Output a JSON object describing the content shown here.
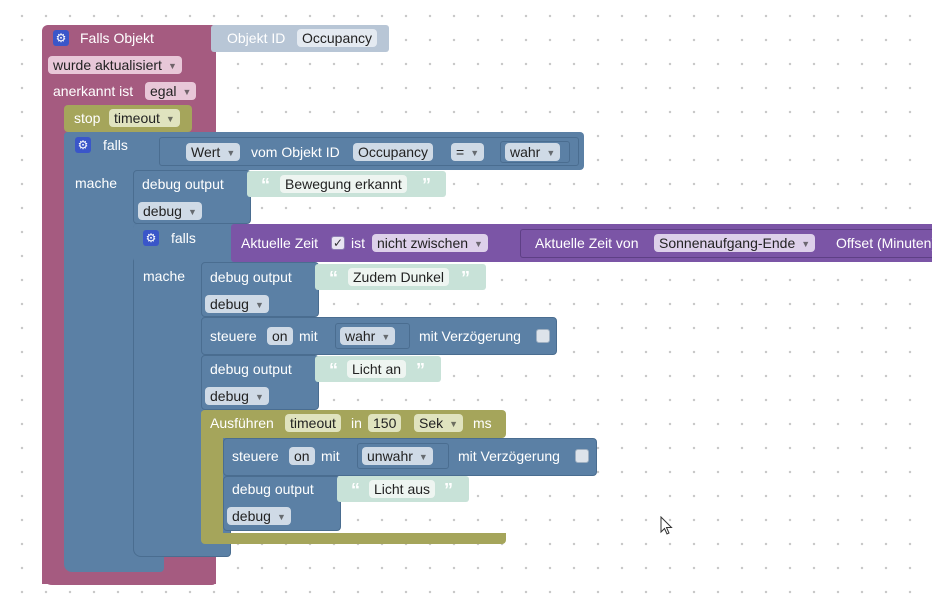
{
  "trigger": {
    "title": "Falls Objekt",
    "objekt_id_label": "Objekt ID",
    "objekt_id_value": "Occupancy",
    "updated": "wurde aktualisiert",
    "acknowledged_label": "anerkannt ist",
    "acknowledged_value": "egal"
  },
  "stop_block": {
    "label": "stop",
    "timeout": "timeout"
  },
  "if_block": {
    "falls": "falls",
    "mache": "mache",
    "wert": "Wert",
    "vom_objekt_id": "vom Objekt ID",
    "objekt": "Occupancy",
    "operator": "=",
    "value": "wahr"
  },
  "debug1": {
    "label": "debug output",
    "text": "Bewegung erkannt",
    "level": "debug"
  },
  "inner_if": {
    "falls": "falls",
    "mache": "mache",
    "aktuelle_zeit": "Aktuelle Zeit",
    "ist": "ist",
    "mode": "nicht zwischen",
    "aktuelle_zeit_von": "Aktuelle Zeit von",
    "sun": "Sonnenaufgang-Ende",
    "offset": "Offset (Minuten)"
  },
  "debug2": {
    "label": "debug output",
    "text": "Zudem Dunkel",
    "level": "debug"
  },
  "steuere1": {
    "label": "steuere",
    "target": "on",
    "mit": "mit",
    "value": "wahr",
    "delay": "mit Verzögerung"
  },
  "debug3": {
    "label": "debug output",
    "text": "Licht an",
    "level": "debug"
  },
  "ausfuehren": {
    "label": "Ausführen",
    "timeout": "timeout",
    "in": "in",
    "amount": "150",
    "unit": "Sek",
    "ms": "ms"
  },
  "steuere2": {
    "label": "steuere",
    "target": "on",
    "mit": "mit",
    "value": "unwahr",
    "delay": "mit Verzögerung"
  },
  "debug4": {
    "label": "debug output",
    "text": "Licht aus",
    "level": "debug"
  },
  "colors": {
    "trigger": "#a55b80",
    "logic": "#5b80a5",
    "timer": "#a5a55b",
    "text": "#5ba58c",
    "time": "#7b55a6"
  }
}
